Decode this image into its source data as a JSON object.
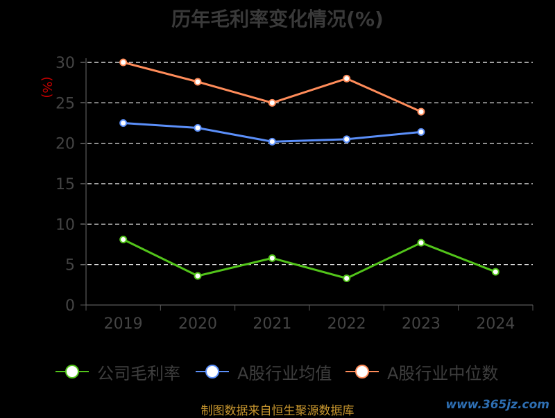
{
  "chart_data": {
    "type": "line",
    "title": "历年毛利率变化情况(%)",
    "ylabel": "(%)",
    "categories": [
      "2019",
      "2020",
      "2021",
      "2022",
      "2023",
      "2024"
    ],
    "ylim": [
      0,
      30
    ],
    "yticks": [
      0,
      5,
      10,
      15,
      20,
      25,
      30
    ],
    "grid": true,
    "legend_position": "bottom",
    "series": [
      {
        "name": "公司毛利率",
        "color": "#52c41a",
        "values": [
          8.1,
          3.6,
          5.8,
          3.3,
          7.7,
          4.1
        ]
      },
      {
        "name": "A股行业均值",
        "color": "#5b8ff9",
        "values": [
          22.5,
          21.9,
          20.2,
          20.5,
          21.4,
          null
        ]
      },
      {
        "name": "A股行业中位数",
        "color": "#ff8c5a",
        "values": [
          30.0,
          27.6,
          25.0,
          28.0,
          23.9,
          null
        ]
      }
    ]
  },
  "footer": {
    "source": "制图数据来自恒生聚源数据库",
    "watermark": "www.365jz.com"
  }
}
